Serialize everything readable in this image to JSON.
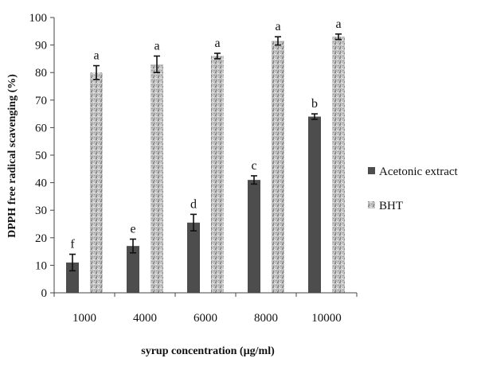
{
  "chart_data": {
    "type": "bar",
    "title": "",
    "xlabel": "syrup concentration (µg/ml)",
    "ylabel": "DPPH free radical scavenging (%)",
    "ylim": [
      0,
      100
    ],
    "yticks": [
      0,
      10,
      20,
      30,
      40,
      50,
      60,
      70,
      80,
      90,
      100
    ],
    "categories": [
      "1000",
      "4000",
      "6000",
      "8000",
      "10000"
    ],
    "grid": false,
    "legend_position": "right",
    "series": [
      {
        "name": "Acetonic extract",
        "color": "#4d4d4d",
        "fill": "solid-dark-gray",
        "values": [
          11,
          17,
          25.5,
          41,
          64
        ],
        "errors": [
          3,
          2.5,
          3,
          1.5,
          1
        ],
        "labels": [
          "f",
          "e",
          "d",
          "c",
          "b"
        ]
      },
      {
        "name": "BHT",
        "color": "#b8b8b8",
        "fill": "speckled-light-gray",
        "values": [
          80,
          83,
          86,
          91.5,
          93
        ],
        "errors": [
          2.5,
          3,
          1,
          1.5,
          1
        ],
        "labels": [
          "a",
          "a",
          "a",
          "a",
          "a"
        ]
      }
    ]
  }
}
